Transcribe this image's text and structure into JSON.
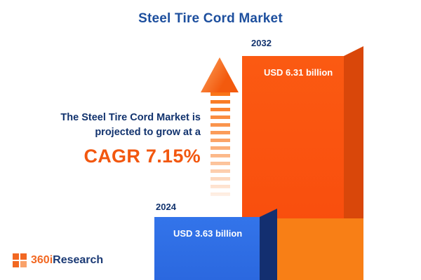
{
  "title": "Steel Tire Cord Market",
  "subtitle": {
    "line1": "The Steel Tire Cord Market is",
    "line2": "projected to grow at a"
  },
  "cagr_text": "CAGR 7.15%",
  "logo": {
    "prefix": "360i",
    "suffix": "Research"
  },
  "chart_data": {
    "type": "bar",
    "title": "Steel Tire Cord Market",
    "categories": [
      "2024",
      "2032"
    ],
    "values": [
      3.63,
      6.31
    ],
    "unit": "USD billion",
    "value_labels": [
      "USD 3.63 billion",
      "USD 6.31 billion"
    ],
    "annotations": [
      "The Steel Tire Cord Market is projected to grow at a CAGR 7.15%"
    ],
    "xlabel": "",
    "ylabel": "",
    "grid": false,
    "legend_position": "none",
    "bar_colors": [
      "#2e6ee6",
      "#f94d0e"
    ]
  },
  "colors": {
    "title_blue": "#1d4f9e",
    "text_navy": "#12336e",
    "accent_orange": "#f2570f",
    "bar_blue_front": "#2e6ee6",
    "bar_blue_side": "#132f70",
    "bar_orange_front": "#f94d0e",
    "bar_orange_side": "#d9470a",
    "bar_orange_light": "#f87f16",
    "logo_orange": "#f26822",
    "logo_navy": "#1b3a75"
  }
}
